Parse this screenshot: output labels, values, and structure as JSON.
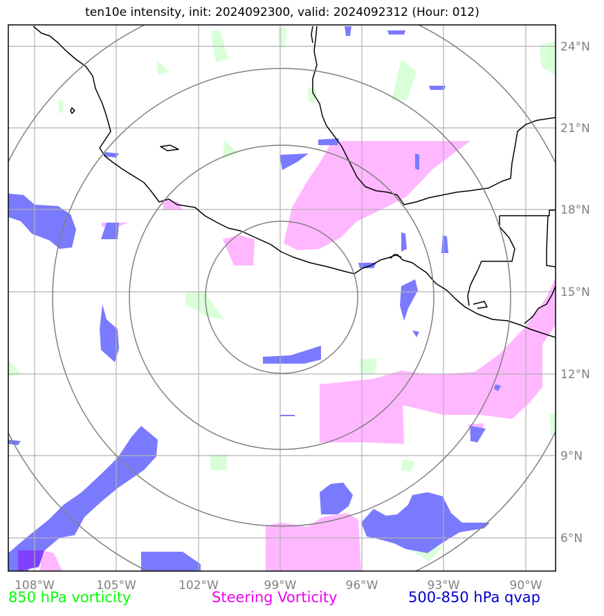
{
  "title": "ten10e intensity, init: 2024092300, valid: 2024092312 (Hour: 012)",
  "lon_labels": [
    "108°W",
    "105°W",
    "102°W",
    "99°W",
    "96°W",
    "93°W",
    "90°W"
  ],
  "lat_labels": [
    "24°N",
    "21°N",
    "18°N",
    "15°N",
    "12°N",
    "9°N",
    "6°N"
  ],
  "legend": {
    "vorticity_850": "850 hPa vorticity",
    "steering": "Steering Vorticity",
    "qvap": "500-850 hPa qvap"
  },
  "colors": {
    "vorticity_850": "#00ff00",
    "vorticity_850_fill": "#d9ffd9",
    "steering": "#ee00ee",
    "steering_fill": "#ffb8ff",
    "qvap": "#0000cc",
    "qvap_fill": "#7a7aff",
    "grid": "#b0b0b0",
    "range_rings": "#808080",
    "coastline": "#000000"
  }
}
